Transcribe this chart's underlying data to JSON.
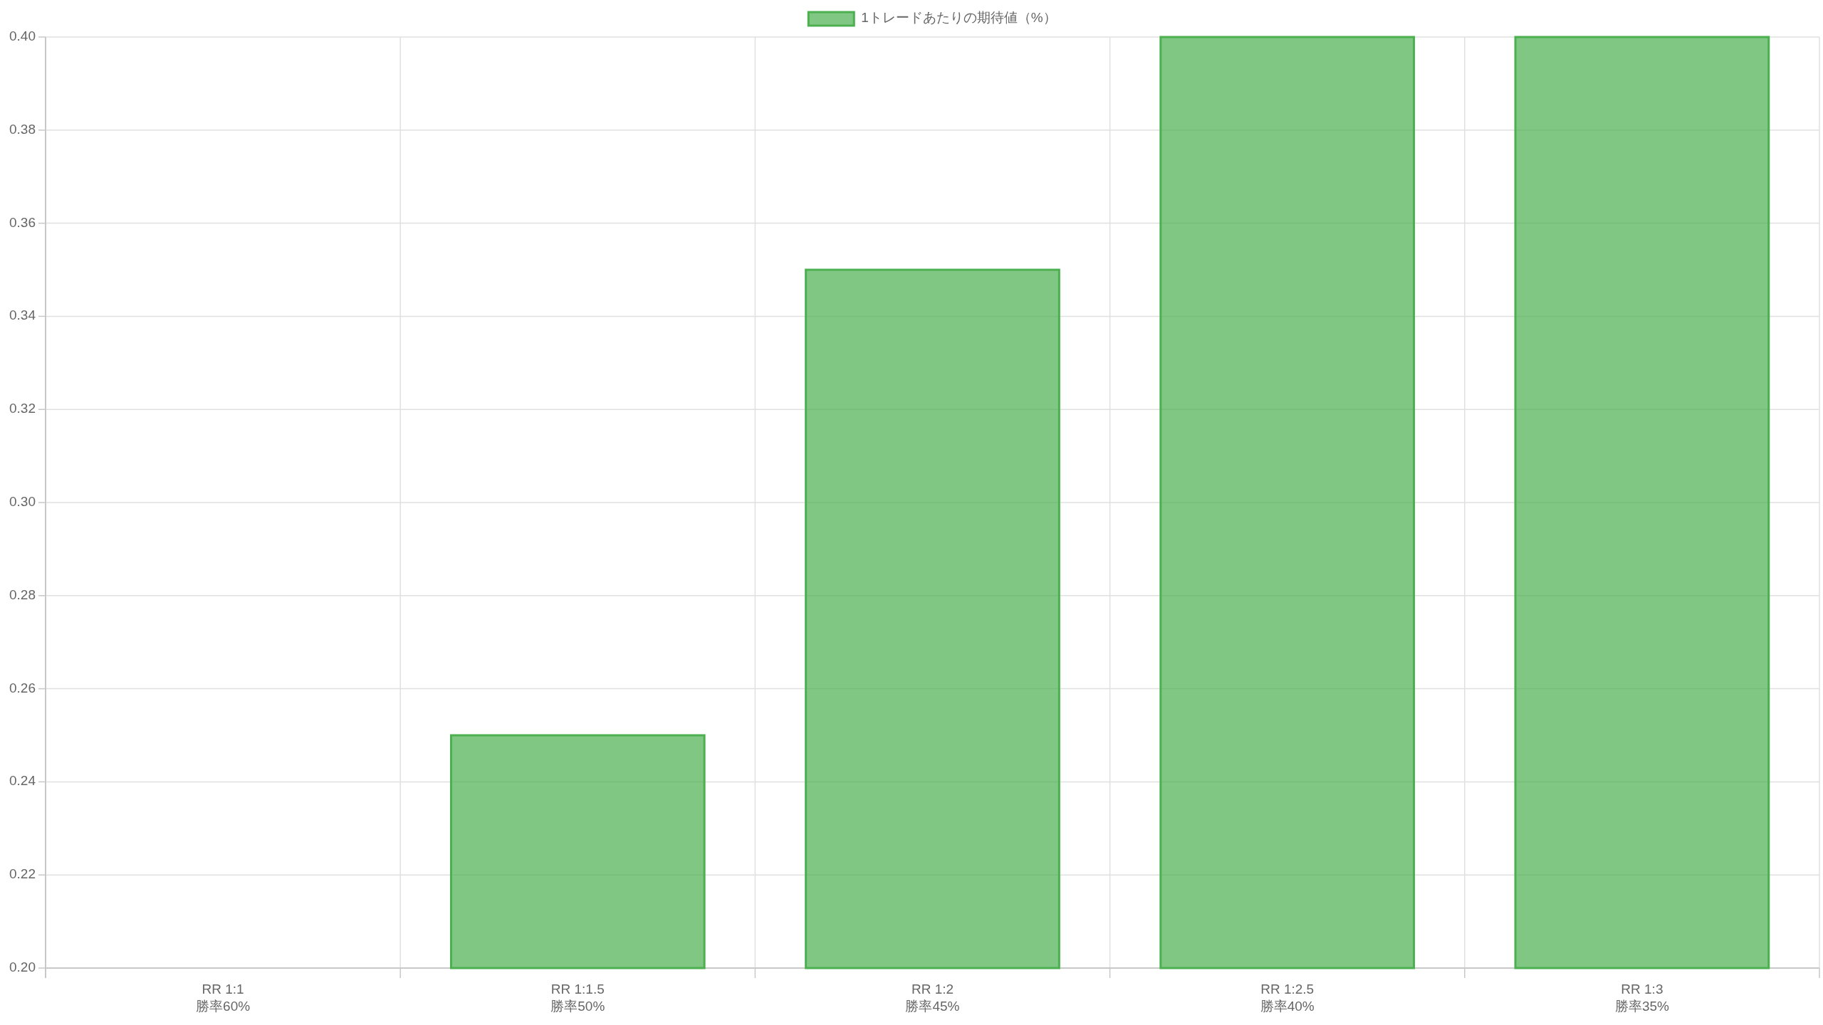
{
  "chart_data": {
    "type": "bar",
    "categories": [
      "RR 1:1\n勝率60%",
      "RR 1:1.5\n勝率50%",
      "RR 1:2\n勝率45%",
      "RR 1:2.5\n勝率40%",
      "RR 1:3\n勝率35%"
    ],
    "series": [
      {
        "name": "1トレードあたりの期待値（%）",
        "color": "#4caf50",
        "values": [
          0.2,
          0.25,
          0.35,
          0.4,
          0.4
        ]
      }
    ],
    "ylim": [
      0.2,
      0.4
    ],
    "yticks": [
      {
        "value": 0.2,
        "label": "0.20"
      },
      {
        "value": 0.22,
        "label": "0.22"
      },
      {
        "value": 0.24,
        "label": "0.24"
      },
      {
        "value": 0.26,
        "label": "0.26"
      },
      {
        "value": 0.28,
        "label": "0.28"
      },
      {
        "value": 0.3,
        "label": "0.30"
      },
      {
        "value": 0.32,
        "label": "0.32"
      },
      {
        "value": 0.34,
        "label": "0.34"
      },
      {
        "value": 0.36,
        "label": "0.36"
      },
      {
        "value": 0.38,
        "label": "0.38"
      },
      {
        "value": 0.4,
        "label": "0.40"
      }
    ],
    "grid": true,
    "legend": "top"
  }
}
